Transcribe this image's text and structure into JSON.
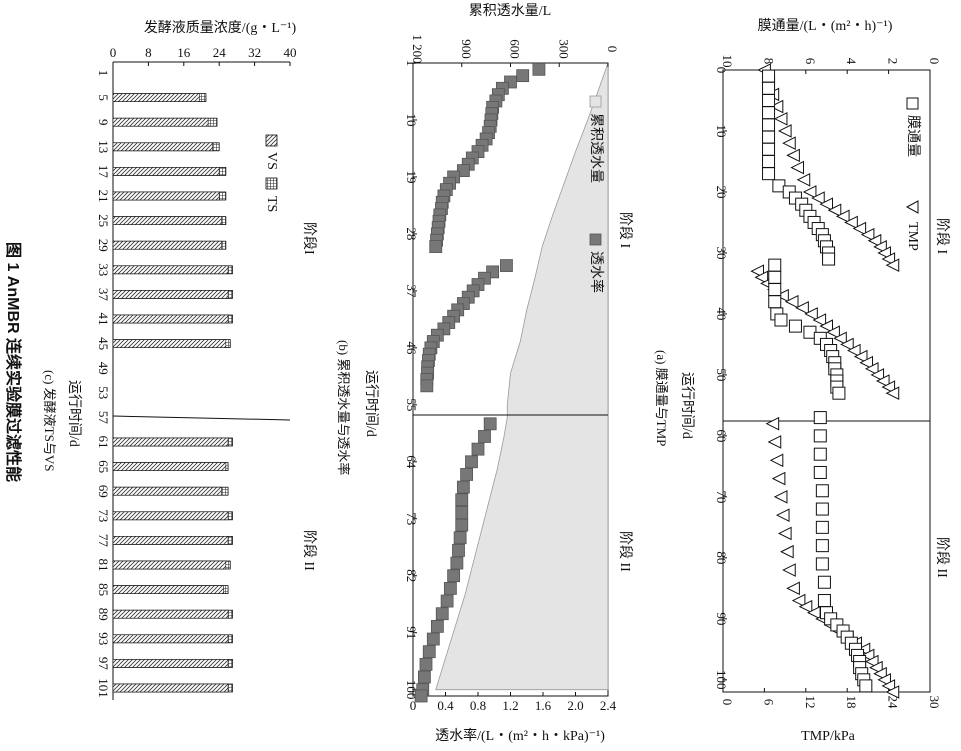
{
  "figure": {
    "caption": "图 1   AnMBR 连续实验膜过滤性能",
    "phase1_label": "阶段 I",
    "phase2_label": "阶段 II",
    "phase1_label_c": "阶段I",
    "phase2_label_c": "阶段 II",
    "x_label": "运行时间/d"
  },
  "chart_data": [
    {
      "id": "a",
      "type": "line",
      "subtitle": "(a) 膜通量与TMP",
      "xlabel": "运行时间/d",
      "ylabel_left": "膜通量/(L・(m²・h)⁻¹)",
      "ylabel_right": "TMP/kPa",
      "xlim": [
        0,
        102
      ],
      "xticks": [
        0,
        10,
        20,
        30,
        40,
        50,
        60,
        70,
        80,
        90,
        100
      ],
      "ylim_flux": [
        0,
        10
      ],
      "yticks_flux": [
        0,
        2,
        4,
        6,
        8,
        10
      ],
      "ylim_tmp": [
        0,
        30
      ],
      "yticks_tmp": [
        0,
        6,
        12,
        18,
        24,
        30
      ],
      "phase_boundary_day": 57,
      "legend": [
        {
          "marker": "□",
          "label": "膜通量"
        },
        {
          "marker": "△",
          "label": "TMP"
        }
      ],
      "series": [
        {
          "name": "膜通量",
          "marker": "square",
          "x": [
            1,
            3,
            5,
            7,
            9,
            11,
            13,
            15,
            17,
            19,
            20,
            21,
            22,
            23,
            24,
            25,
            26,
            27,
            28,
            29,
            30,
            31,
            32,
            34,
            36,
            38,
            40,
            41,
            42,
            43,
            44,
            45,
            46,
            47,
            48,
            49,
            50,
            51,
            52,
            53,
            57,
            60,
            63,
            66,
            69,
            72,
            75,
            78,
            81,
            84,
            87,
            89,
            90,
            91,
            92,
            93,
            94,
            95,
            96,
            97,
            98,
            99,
            100,
            101
          ],
          "y": [
            7.8,
            7.8,
            7.8,
            7.8,
            7.8,
            7.8,
            7.8,
            7.8,
            7.8,
            7.3,
            6.8,
            6.5,
            6.2,
            6.0,
            5.8,
            5.6,
            5.4,
            5.2,
            5.1,
            5.0,
            4.9,
            4.9,
            7.5,
            7.5,
            7.5,
            7.5,
            7.4,
            7.2,
            6.5,
            5.8,
            5.3,
            5.0,
            4.8,
            4.7,
            4.6,
            4.6,
            4.5,
            4.5,
            4.5,
            4.4,
            5.3,
            5.3,
            5.3,
            5.3,
            5.2,
            5.2,
            5.2,
            5.2,
            5.2,
            5.1,
            5.1,
            5.0,
            4.8,
            4.5,
            4.2,
            4.0,
            3.8,
            3.6,
            3.5,
            3.4,
            3.4,
            3.3,
            3.2,
            3.1
          ]
        },
        {
          "name": "TMP",
          "marker": "triangle",
          "x": [
            0,
            2,
            4,
            6,
            8,
            10,
            12,
            14,
            16,
            18,
            20,
            21,
            22,
            23,
            24,
            25,
            26,
            27,
            28,
            29,
            30,
            31,
            32,
            33,
            34,
            35,
            36,
            37,
            38,
            39,
            40,
            41,
            42,
            43,
            44,
            45,
            46,
            47,
            48,
            49,
            50,
            51,
            52,
            53,
            58,
            61,
            64,
            67,
            70,
            73,
            76,
            79,
            82,
            85,
            87,
            88,
            89,
            90,
            91,
            92,
            93,
            94,
            95,
            96,
            97,
            98,
            99,
            100,
            101,
            102
          ],
          "y": [
            6,
            6.6,
            7.2,
            7.8,
            8.4,
            9.0,
            9.6,
            10.2,
            10.8,
            11.7,
            12.6,
            13.8,
            15.0,
            16.2,
            17.4,
            18.6,
            19.8,
            21.0,
            22.0,
            22.8,
            23.4,
            24.0,
            24.6,
            5.0,
            5.6,
            6.4,
            7.4,
            8.6,
            10.0,
            11.5,
            12.8,
            14.0,
            15.0,
            16.0,
            17.0,
            18.0,
            19.0,
            20.0,
            20.8,
            21.6,
            22.4,
            23.2,
            24.0,
            24.6,
            7.2,
            7.5,
            7.8,
            8.1,
            8.4,
            8.7,
            9.0,
            9.3,
            9.6,
            10.2,
            11.0,
            12.0,
            13.2,
            14.4,
            15.6,
            16.8,
            18.0,
            19.2,
            20.4,
            21.0,
            21.6,
            22.2,
            22.8,
            23.4,
            24.0,
            24.6
          ]
        }
      ]
    },
    {
      "id": "b",
      "type": "area",
      "subtitle": "(b) 累积透水量与透水率",
      "xlabel": "运行时间/d",
      "ylabel_top": "累积透水量/L",
      "ylabel_bottom": "透水率/(L・(m²・h・kPa)⁻¹)",
      "xlim": [
        1,
        101
      ],
      "xticks": [
        1,
        10,
        19,
        28,
        37,
        46,
        55,
        64,
        73,
        82,
        91,
        100
      ],
      "ylim_cumulative": [
        0,
        1200
      ],
      "yticks_cumulative": [
        "0",
        "300",
        "600",
        "900",
        "1 200"
      ],
      "ylim_permeability": [
        0,
        2.4
      ],
      "yticks_permeability": [
        "0",
        "0.4",
        "0.8",
        "1.2",
        "1.6",
        "2.0",
        "2.4"
      ],
      "phase_boundary_day": 57,
      "legend": [
        {
          "marker": "area",
          "label": "累积透水量"
        },
        {
          "marker": "square",
          "label": "透水率"
        }
      ],
      "series": [
        {
          "name": "累积透水量",
          "marker": "area",
          "x": [
            1,
            5,
            10,
            15,
            20,
            25,
            30,
            35,
            40,
            45,
            50,
            55,
            57,
            60,
            65,
            70,
            75,
            80,
            85,
            90,
            95,
            100
          ],
          "y": [
            0,
            55,
            125,
            200,
            270,
            340,
            405,
            450,
            500,
            540,
            600,
            620,
            620,
            640,
            680,
            730,
            780,
            830,
            880,
            940,
            1000,
            1060
          ]
        },
        {
          "name": "透水率",
          "marker": "square",
          "x": [
            2,
            3,
            4,
            5,
            6,
            7,
            8,
            9,
            10,
            11,
            12,
            13,
            14,
            15,
            16,
            17,
            18,
            19,
            20,
            21,
            22,
            23,
            24,
            25,
            26,
            27,
            28,
            29,
            30,
            33,
            34,
            35,
            36,
            37,
            38,
            39,
            40,
            41,
            42,
            43,
            44,
            45,
            46,
            47,
            48,
            49,
            50,
            51,
            52,
            58,
            60,
            62,
            64,
            66,
            68,
            70,
            72,
            74,
            76,
            78,
            80,
            82,
            84,
            86,
            88,
            90,
            92,
            94,
            96,
            98,
            100,
            101
          ],
          "y": [
            1.55,
            1.35,
            1.2,
            1.1,
            1.05,
            1.02,
            0.98,
            0.97,
            0.96,
            0.95,
            0.93,
            0.9,
            0.85,
            0.8,
            0.73,
            0.68,
            0.62,
            0.5,
            0.45,
            0.41,
            0.38,
            0.36,
            0.35,
            0.33,
            0.32,
            0.31,
            0.3,
            0.29,
            0.28,
            1.15,
            0.98,
            0.88,
            0.8,
            0.74,
            0.68,
            0.62,
            0.55,
            0.5,
            0.44,
            0.38,
            0.3,
            0.25,
            0.22,
            0.2,
            0.19,
            0.18,
            0.18,
            0.17,
            0.17,
            0.95,
            0.88,
            0.8,
            0.72,
            0.66,
            0.62,
            0.6,
            0.6,
            0.6,
            0.58,
            0.56,
            0.54,
            0.5,
            0.46,
            0.42,
            0.36,
            0.3,
            0.25,
            0.2,
            0.16,
            0.14,
            0.12,
            0.1
          ]
        }
      ]
    },
    {
      "id": "c",
      "type": "bar",
      "subtitle": "(c) 发酵液TS与VS",
      "xlabel": "运行时间/d",
      "ylabel": "发酵液质量浓度/(g・L⁻¹)",
      "ylim": [
        0,
        40
      ],
      "yticks": [
        0,
        8,
        16,
        24,
        32,
        40
      ],
      "categories": [
        "1",
        "5",
        "9",
        "13",
        "17",
        "21",
        "25",
        "29",
        "33",
        "37",
        "41",
        "45",
        "49",
        "53",
        "57",
        "61",
        "65",
        "69",
        "73",
        "77",
        "81",
        "85",
        "89",
        "93",
        "97",
        "101"
      ],
      "phase_boundary_index": 14,
      "legend": [
        {
          "marker": "hatch",
          "label": "VS"
        },
        {
          "marker": "grid",
          "label": "TS"
        }
      ],
      "series": [
        {
          "name": "VS",
          "values": [
            null,
            19.5,
            21.5,
            22.5,
            24.0,
            24.0,
            24.5,
            24.5,
            26.0,
            26.0,
            26.0,
            25.5,
            null,
            null,
            null,
            26.0,
            25.5,
            24.5,
            26.0,
            26.0,
            25.5,
            25.0,
            26.0,
            26.0,
            26.0,
            26.0
          ]
        },
        {
          "name": "TS",
          "values": [
            null,
            21.0,
            23.5,
            24.0,
            25.5,
            25.5,
            25.5,
            25.5,
            27.0,
            27.0,
            27.0,
            26.5,
            null,
            null,
            null,
            27.0,
            26.0,
            26.0,
            27.0,
            27.0,
            26.5,
            26.0,
            27.0,
            27.0,
            27.0,
            27.0
          ]
        }
      ]
    }
  ]
}
